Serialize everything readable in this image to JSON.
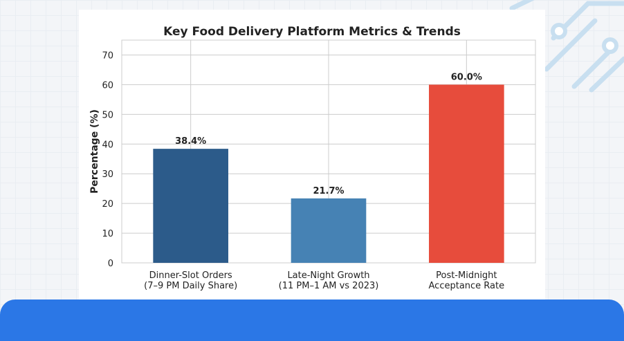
{
  "colors": {
    "background": "#f3f5f8",
    "card": "#ffffff",
    "bottom_bar": "#2b77e6",
    "grid": "#cccccc",
    "decor": "#c8dff0"
  },
  "chart_data": {
    "type": "bar",
    "title": "Key Food Delivery Platform Metrics & Trends",
    "xlabel": "",
    "ylabel": "Percentage (%)",
    "ylim": [
      0,
      75
    ],
    "yticks": [
      0,
      10,
      20,
      30,
      40,
      50,
      60,
      70
    ],
    "grid": true,
    "categories": [
      [
        "Dinner-Slot Orders",
        "(7–9 PM Daily Share)"
      ],
      [
        "Late-Night Growth",
        "(11 PM–1 AM vs 2023)"
      ],
      [
        "Post-Midnight",
        "Acceptance Rate"
      ]
    ],
    "values": [
      38.4,
      21.7,
      60.0
    ],
    "value_labels": [
      "38.4%",
      "21.7%",
      "60.0%"
    ],
    "colors": [
      "#2c5b8a",
      "#4682b4",
      "#e74c3c"
    ]
  }
}
